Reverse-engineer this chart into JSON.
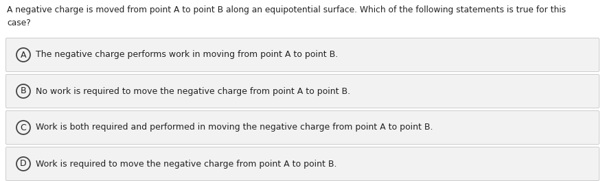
{
  "question": "A negative charge is moved from point A to point B along an equipotential surface. Which of the following statements is true for this\ncase?",
  "options": [
    {
      "label": "A",
      "text": "The negative charge performs work in moving from point A to point B."
    },
    {
      "label": "B",
      "text": "No work is required to move the negative charge from point A to point B."
    },
    {
      "label": "C",
      "text": "Work is both required and performed in moving the negative charge from point A to point B."
    },
    {
      "label": "D",
      "text": "Work is required to move the negative charge from point A to point B."
    }
  ],
  "bg_color": "#ffffff",
  "option_bg_color": "#f2f2f2",
  "option_border_color": "#cccccc",
  "text_color": "#222222",
  "circle_edge_color": "#444444",
  "question_fontsize": 8.8,
  "option_fontsize": 9.0,
  "label_fontsize": 9.0,
  "fig_width": 8.81,
  "fig_height": 2.64,
  "dpi": 100
}
